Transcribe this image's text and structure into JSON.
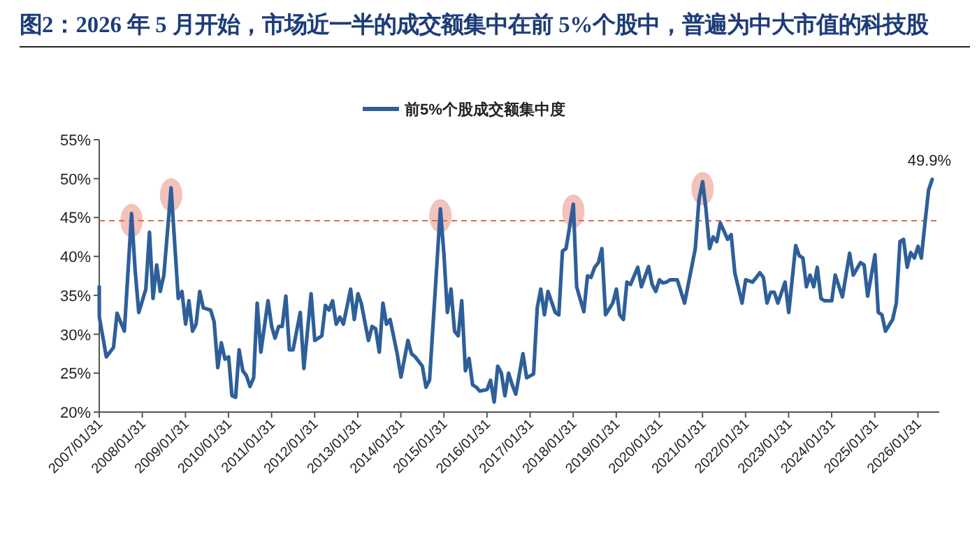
{
  "chart_data": {
    "type": "line",
    "title": "图2：2026 年 5 月开始，市场近一半的成交额集中在前 5%个股中，普遍为中大市值的科技股",
    "legend": "top",
    "xlim": [
      "2007-01-31",
      "2026-07-31"
    ],
    "xticks": [
      {
        "value": "2007-01-31",
        "label": "2007/01/31"
      },
      {
        "value": "2008-01-31",
        "label": "2008/01/31"
      },
      {
        "value": "2009-01-31",
        "label": "2009/01/31"
      },
      {
        "value": "2010-01-31",
        "label": "2010/01/31"
      },
      {
        "value": "2011-01-31",
        "label": "2011/01/31"
      },
      {
        "value": "2012-01-31",
        "label": "2012/01/31"
      },
      {
        "value": "2013-01-31",
        "label": "2013/01/31"
      },
      {
        "value": "2014-01-31",
        "label": "2014/01/31"
      },
      {
        "value": "2015-01-31",
        "label": "2015/01/31"
      },
      {
        "value": "2016-01-31",
        "label": "2016/01/31"
      },
      {
        "value": "2017-01-31",
        "label": "2017/01/31"
      },
      {
        "value": "2018-01-31",
        "label": "2018/01/31"
      },
      {
        "value": "2019-01-31",
        "label": "2019/01/31"
      },
      {
        "value": "2020-01-31",
        "label": "2020/01/31"
      },
      {
        "value": "2021-01-31",
        "label": "2021/01/31"
      },
      {
        "value": "2022-01-31",
        "label": "2022/01/31"
      },
      {
        "value": "2023-01-31",
        "label": "2023/01/31"
      },
      {
        "value": "2024-01-31",
        "label": "2024/01/31"
      },
      {
        "value": "2025-01-31",
        "label": "2025/01/31"
      },
      {
        "value": "2026-01-31",
        "label": "2026/01/31"
      }
    ],
    "ylim": [
      20,
      55
    ],
    "yticks": [
      {
        "value": 20,
        "label": "20%"
      },
      {
        "value": 25,
        "label": "25%"
      },
      {
        "value": 30,
        "label": "30%"
      },
      {
        "value": 35,
        "label": "35%"
      },
      {
        "value": 40,
        "label": "40%"
      },
      {
        "value": 45,
        "label": "45%"
      },
      {
        "value": 50,
        "label": "50%"
      },
      {
        "value": 55,
        "label": "55%"
      }
    ],
    "ref_lines": [
      {
        "axis": "y",
        "value": 44.6,
        "color": "#e06a5a",
        "line_style": "dashed"
      }
    ],
    "annotations": [
      {
        "text": "49.9%",
        "x": "2026-06",
        "y": 49.9
      }
    ],
    "series": [
      {
        "name": "前5%个股成交额集中度",
        "color": "#2e5f99",
        "x": [
          "2007-01-31",
          "2007-02",
          "2007-04",
          "2007-06",
          "2007-07",
          "2007-09",
          "2007-11",
          "2007-12",
          "2008-01",
          "2008-03",
          "2008-04",
          "2008-05",
          "2008-06",
          "2008-07",
          "2008-08",
          "2008-10",
          "2008-12",
          "2009-01",
          "2009-02",
          "2009-03",
          "2009-04",
          "2009-05",
          "2009-06",
          "2009-07",
          "2009-09",
          "2009-10",
          "2009-11",
          "2009-12",
          "2010-01",
          "2010-02",
          "2010-03",
          "2010-04",
          "2010-05",
          "2010-06",
          "2010-07",
          "2010-08",
          "2010-09",
          "2010-10",
          "2010-11",
          "2011-01",
          "2011-02",
          "2011-03",
          "2011-04",
          "2011-05",
          "2011-06",
          "2011-07",
          "2011-08",
          "2011-10",
          "2011-11",
          "2012-01",
          "2012-02",
          "2012-04",
          "2012-05",
          "2012-06",
          "2012-07",
          "2012-08",
          "2012-09",
          "2012-10",
          "2012-12",
          "2013-01",
          "2013-02",
          "2013-03",
          "2013-05",
          "2013-06",
          "2013-07",
          "2013-08",
          "2013-09",
          "2013-10",
          "2013-11",
          "2014-01",
          "2014-02",
          "2014-04",
          "2014-05",
          "2014-06",
          "2014-08",
          "2014-09",
          "2014-10",
          "2015-01",
          "2015-02",
          "2015-03",
          "2015-04",
          "2015-05",
          "2015-06",
          "2015-07",
          "2015-08",
          "2015-09",
          "2015-10",
          "2015-11",
          "2015-12",
          "2016-02",
          "2016-03",
          "2016-04",
          "2016-05",
          "2016-06",
          "2016-07",
          "2016-08",
          "2016-09",
          "2016-10",
          "2016-12",
          "2017-01",
          "2017-03",
          "2017-04",
          "2017-05",
          "2017-06",
          "2017-07",
          "2017-09",
          "2017-10",
          "2017-11",
          "2017-12",
          "2018-02",
          "2018-03",
          "2018-05",
          "2018-06",
          "2018-07",
          "2018-08",
          "2018-09",
          "2018-10",
          "2018-11",
          "2019-01",
          "2019-02",
          "2019-03",
          "2019-04",
          "2019-05",
          "2019-06",
          "2019-08",
          "2019-09",
          "2019-11",
          "2019-12",
          "2020-01",
          "2020-02",
          "2020-03",
          "2020-04",
          "2020-05",
          "2020-07",
          "2020-09",
          "2020-12",
          "2021-01",
          "2021-02",
          "2021-03",
          "2021-04",
          "2021-05",
          "2021-06",
          "2021-07",
          "2021-09",
          "2021-10",
          "2021-11",
          "2022-01",
          "2022-02",
          "2022-04",
          "2022-06",
          "2022-07",
          "2022-08",
          "2022-09",
          "2022-10",
          "2022-11",
          "2023-01",
          "2023-02",
          "2023-04",
          "2023-05",
          "2023-06",
          "2023-07",
          "2023-08",
          "2023-09",
          "2023-10",
          "2023-11",
          "2023-12",
          "2024-02",
          "2024-03",
          "2024-05",
          "2024-07",
          "2024-08",
          "2024-10",
          "2024-11",
          "2024-12",
          "2025-02",
          "2025-03",
          "2025-04",
          "2025-05",
          "2025-07",
          "2025-08",
          "2025-09",
          "2025-10",
          "2025-11",
          "2025-12",
          "2026-01",
          "2026-02",
          "2026-03",
          "2026-04",
          "2026-05",
          "2026-06"
        ],
        "values": [
          36.1,
          32.2,
          27.1,
          28.3,
          32.7,
          30.4,
          45.5,
          38.3,
          32.8,
          35.8,
          43.1,
          34.6,
          38.9,
          35.5,
          37.6,
          48.8,
          34.6,
          35.5,
          31.3,
          34.3,
          30.4,
          31.3,
          35.5,
          33.4,
          33.1,
          31.6,
          25.7,
          28.9,
          26.8,
          27.1,
          22.1,
          21.9,
          28.0,
          25.3,
          24.7,
          23.3,
          24.4,
          34.0,
          27.7,
          34.3,
          31.0,
          29.5,
          31.0,
          31.0,
          34.9,
          28.0,
          28.0,
          32.8,
          25.6,
          35.2,
          29.2,
          29.8,
          33.7,
          33.1,
          34.3,
          31.3,
          32.2,
          31.3,
          35.8,
          31.9,
          35.2,
          34.0,
          29.2,
          31.0,
          30.7,
          27.7,
          34.0,
          31.3,
          31.9,
          27.4,
          24.5,
          29.2,
          27.5,
          27.1,
          25.9,
          23.2,
          24.1,
          46.1,
          40.1,
          32.8,
          35.8,
          30.4,
          29.8,
          34.3,
          25.3,
          26.9,
          23.5,
          23.2,
          22.7,
          22.9,
          24.1,
          21.3,
          25.9,
          25.0,
          22.1,
          25.0,
          23.5,
          22.3,
          27.5,
          24.4,
          24.9,
          33.4,
          35.8,
          32.5,
          35.5,
          32.8,
          32.5,
          40.7,
          41.0,
          46.7,
          36.1,
          32.9,
          37.5,
          37.3,
          38.6,
          39.2,
          41.0,
          32.5,
          34.0,
          35.8,
          32.5,
          31.9,
          36.7,
          36.4,
          38.6,
          36.1,
          38.7,
          36.4,
          35.5,
          37.0,
          36.6,
          36.7,
          37.0,
          37.0,
          34.0,
          41.0,
          47.3,
          49.6,
          46.1,
          41.0,
          42.5,
          41.9,
          44.3,
          42.2,
          42.8,
          37.9,
          34.0,
          37.0,
          36.7,
          37.9,
          37.3,
          34.0,
          35.4,
          35.4,
          34.0,
          36.7,
          32.8,
          41.4,
          40.1,
          39.8,
          36.1,
          37.6,
          36.1,
          38.6,
          34.6,
          34.3,
          34.3,
          37.6,
          34.8,
          40.4,
          37.6,
          39.2,
          38.9,
          34.9,
          40.2,
          32.8,
          32.5,
          30.4,
          31.9,
          34.0,
          41.9,
          42.2,
          38.6,
          40.5,
          39.8,
          41.3,
          39.8,
          44.3,
          48.5,
          49.9
        ]
      }
    ]
  }
}
